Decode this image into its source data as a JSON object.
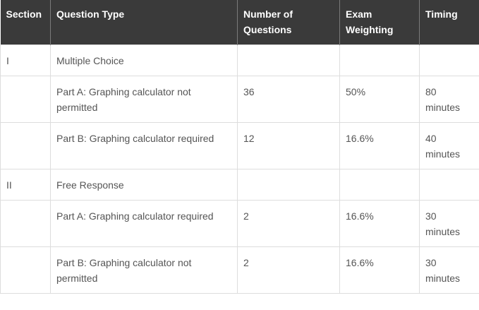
{
  "table": {
    "headers": [
      "Section",
      "Question Type",
      "Number of Questions",
      "Exam Weighting",
      "Timing"
    ],
    "rows": [
      [
        "I",
        "Multiple Choice",
        "",
        "",
        ""
      ],
      [
        "",
        "Part A: Graphing calculator not permitted",
        "36",
        "50%",
        "80 minutes"
      ],
      [
        "",
        "Part B: Graphing calculator required",
        "12",
        "16.6%",
        "40 minutes"
      ],
      [
        "II",
        "Free Response",
        "",
        "",
        ""
      ],
      [
        "",
        "Part A: Graphing calculator required",
        "2",
        "16.6%",
        "30 minutes"
      ],
      [
        "",
        "Part B: Graphing calculator not permitted",
        "2",
        "16.6%",
        "30 minutes"
      ]
    ]
  },
  "colors": {
    "header_background": "#3a3a3a",
    "header_text": "#ffffff",
    "body_text": "#555555",
    "border": "#dddddd"
  }
}
